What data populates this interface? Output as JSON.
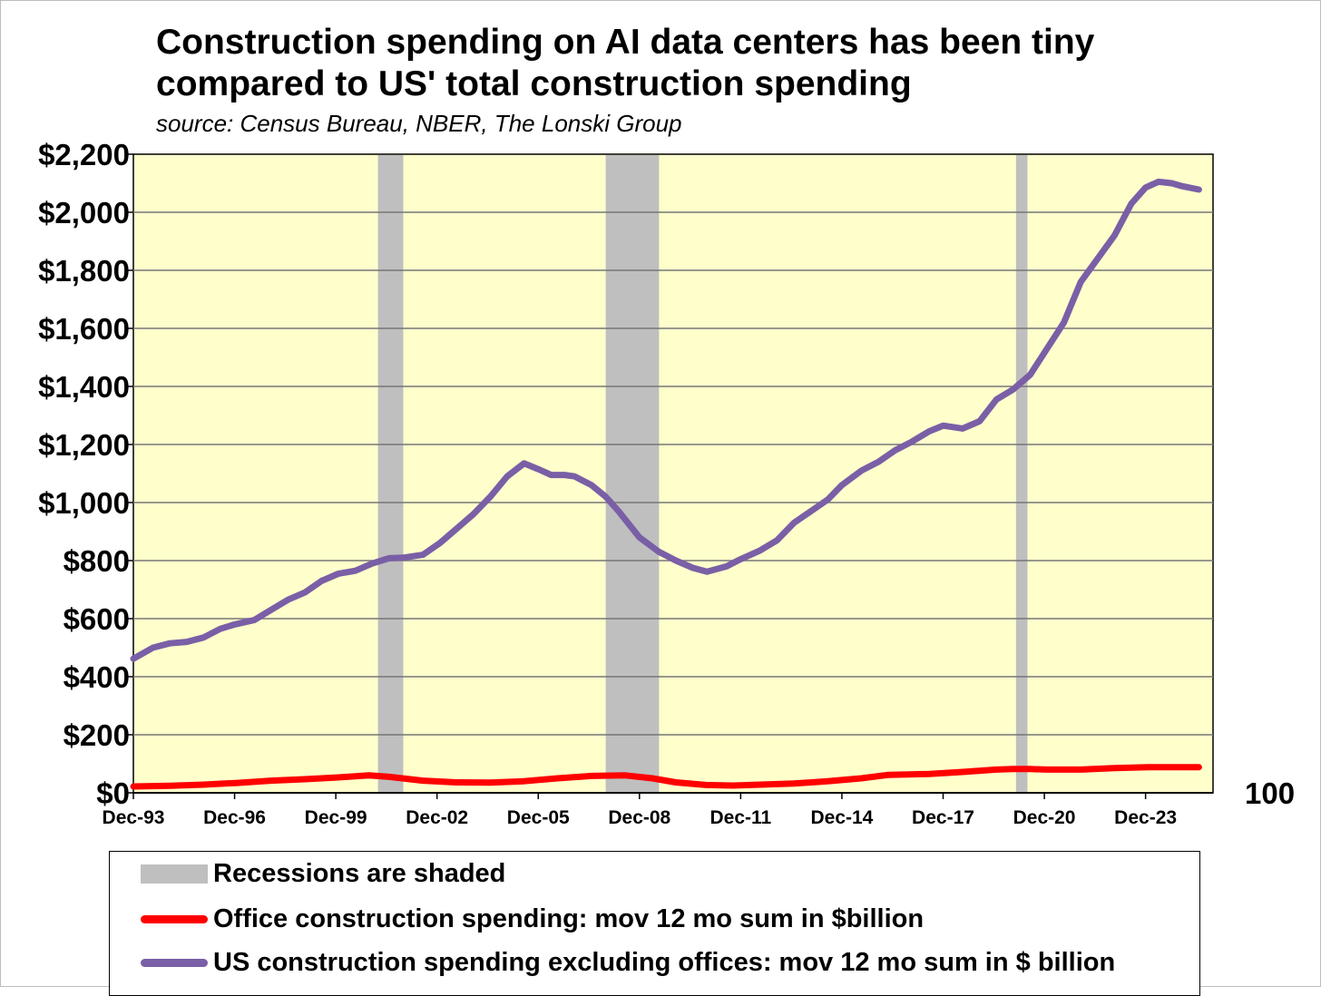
{
  "chart_data": {
    "type": "line",
    "title": "Construction spending on AI data centers has been tiny compared to US' total construction spending",
    "subtitle": "source: Census Bureau, NBER, The Lonski Group",
    "ylim": [
      0,
      2200
    ],
    "y_ticks": [
      "$0",
      "$200",
      "$400",
      "$600",
      "$800",
      "$1,000",
      "$1,200",
      "$1,400",
      "$1,600",
      "$1,800",
      "$2,000",
      "$2,200"
    ],
    "y_tick_values": [
      0,
      200,
      400,
      600,
      800,
      1000,
      1200,
      1400,
      1600,
      1800,
      2000,
      2200
    ],
    "right_axis_label": "100",
    "x_range": [
      1993.92,
      2025.92
    ],
    "x_ticks": [
      "Dec-93",
      "Dec-96",
      "Dec-99",
      "Dec-02",
      "Dec-05",
      "Dec-08",
      "Dec-11",
      "Dec-14",
      "Dec-17",
      "Dec-20",
      "Dec-23"
    ],
    "x_tick_values": [
      1993.92,
      1996.92,
      1999.92,
      2002.92,
      2005.92,
      2008.92,
      2011.92,
      2014.92,
      2017.92,
      2020.92,
      2023.92
    ],
    "recessions": [
      [
        2001.17,
        2001.92
      ],
      [
        2007.92,
        2009.5
      ],
      [
        2020.08,
        2020.42
      ]
    ],
    "series": [
      {
        "name": "US construction spending excluding offices: mov 12 mo sum in $ billion",
        "color": "#7a5fa6",
        "x": [
          1993.92,
          1994.5,
          1995.0,
          1995.5,
          1996.0,
          1996.5,
          1996.92,
          1997.5,
          1998.0,
          1998.5,
          1999.0,
          1999.5,
          2000.0,
          2000.5,
          2001.0,
          2001.5,
          2001.92,
          2002.5,
          2003.0,
          2003.5,
          2004.0,
          2004.5,
          2005.0,
          2005.5,
          2005.92,
          2006.3,
          2006.7,
          2007.0,
          2007.5,
          2007.92,
          2008.3,
          2008.92,
          2009.5,
          2010.0,
          2010.5,
          2010.92,
          2011.5,
          2011.92,
          2012.5,
          2013.0,
          2013.5,
          2014.0,
          2014.5,
          2014.92,
          2015.5,
          2016.0,
          2016.5,
          2017.0,
          2017.5,
          2017.92,
          2018.5,
          2019.0,
          2019.5,
          2020.0,
          2020.5,
          2021.0,
          2021.5,
          2022.0,
          2022.5,
          2023.0,
          2023.5,
          2023.92,
          2024.3,
          2024.7,
          2025.0,
          2025.5
        ],
        "values": [
          462,
          500,
          515,
          520,
          535,
          565,
          580,
          595,
          630,
          665,
          690,
          730,
          755,
          765,
          790,
          808,
          810,
          820,
          860,
          910,
          960,
          1020,
          1090,
          1135,
          1115,
          1095,
          1095,
          1090,
          1060,
          1020,
          970,
          880,
          830,
          800,
          775,
          762,
          780,
          805,
          835,
          870,
          930,
          970,
          1010,
          1060,
          1110,
          1140,
          1180,
          1210,
          1245,
          1265,
          1255,
          1280,
          1355,
          1390,
          1440,
          1530,
          1620,
          1760,
          1840,
          1920,
          2030,
          2085,
          2105,
          2100,
          2090,
          2078
        ]
      },
      {
        "name": "Office construction spending: mov 12 mo sum in $billion",
        "color": "#ff0000",
        "x": [
          1993.92,
          1995.0,
          1996.0,
          1997.0,
          1998.0,
          1999.0,
          2000.0,
          2000.9,
          2001.5,
          2002.5,
          2003.5,
          2004.5,
          2005.5,
          2006.5,
          2007.5,
          2008.5,
          2009.3,
          2010.0,
          2010.9,
          2011.7,
          2012.5,
          2013.5,
          2014.5,
          2015.5,
          2016.3,
          2017.5,
          2018.5,
          2019.5,
          2020.0,
          2020.5,
          2021.0,
          2022.0,
          2023.0,
          2024.0,
          2025.0,
          2025.5
        ],
        "values": [
          22,
          24,
          28,
          34,
          42,
          47,
          53,
          60,
          55,
          42,
          36,
          35,
          40,
          50,
          58,
          60,
          50,
          36,
          27,
          25,
          28,
          32,
          40,
          50,
          62,
          65,
          72,
          80,
          82,
          82,
          80,
          80,
          85,
          88,
          88,
          88
        ]
      }
    ],
    "legend": {
      "recession_label": "Recessions are shaded",
      "office_label": "Office construction spending: mov 12 mo sum in $billion",
      "us_label": "US construction spending excluding offices: mov 12 mo sum in $ billion"
    },
    "colors": {
      "plot_background": "#ffffcc",
      "recession_shade": "#bfbfbf",
      "gridline": "#777777"
    }
  }
}
